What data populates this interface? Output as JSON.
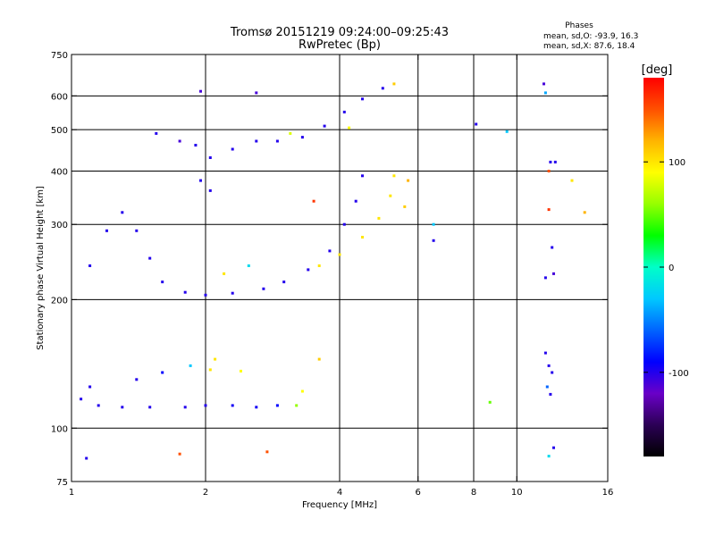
{
  "chart_data": {
    "type": "scatter",
    "title": "Tromsø 20151219 09:24:00–09:25:43",
    "subtitle": "RwPretec (Bp)",
    "xlabel": "Frequency [MHz]",
    "ylabel": "Stationary phase Virtual Height [km]",
    "x_scale": "log",
    "y_scale": "log",
    "xlim": [
      1,
      16
    ],
    "ylim": [
      75,
      750
    ],
    "x_ticks": [
      1,
      2,
      4,
      6,
      8,
      10,
      16
    ],
    "x_tick_labels": [
      "1",
      "2",
      "4",
      "6",
      "8",
      "10",
      "16"
    ],
    "y_ticks": [
      75,
      100,
      200,
      300,
      400,
      500,
      600,
      750
    ],
    "y_tick_labels": [
      "75",
      "100",
      "200",
      "300",
      "400",
      "500",
      "600",
      "750"
    ],
    "x_gridlines": [
      2,
      4,
      6,
      8,
      10
    ],
    "y_gridlines": [
      100,
      200,
      300,
      400,
      500,
      600
    ],
    "grid": true,
    "phases": {
      "heading": "Phases",
      "o_line": "mean, sd,O: -93.9, 16.3",
      "x_line": "mean, sd,X:  87.6, 18.4"
    },
    "colorbar": {
      "label": "[deg]",
      "min": -180,
      "max": 180,
      "ticks": [
        100,
        0,
        -100
      ],
      "tick_labels": [
        "100",
        "0",
        "-100"
      ],
      "stops": [
        "#000000",
        "#2b0055",
        "#6a00c8",
        "#0000ff",
        "#0064ff",
        "#00c8ff",
        "#00ffc8",
        "#00ff00",
        "#96ff00",
        "#ffff00",
        "#ffb400",
        "#ff5000",
        "#ff0000"
      ]
    },
    "series": [
      {
        "values": [
          {
            "x": 1.05,
            "y": 117,
            "phase": -100
          },
          {
            "x": 1.15,
            "y": 113,
            "phase": -100
          },
          {
            "x": 1.3,
            "y": 112,
            "phase": -100
          },
          {
            "x": 1.5,
            "y": 112,
            "phase": -100
          },
          {
            "x": 1.8,
            "y": 112,
            "phase": -100
          },
          {
            "x": 2.0,
            "y": 113,
            "phase": -100
          },
          {
            "x": 2.3,
            "y": 113,
            "phase": -95
          },
          {
            "x": 2.6,
            "y": 112,
            "phase": -95
          },
          {
            "x": 2.9,
            "y": 113,
            "phase": -90
          },
          {
            "x": 3.2,
            "y": 113,
            "phase": 60
          },
          {
            "x": 1.1,
            "y": 125,
            "phase": -100
          },
          {
            "x": 1.4,
            "y": 130,
            "phase": -100
          },
          {
            "x": 1.6,
            "y": 135,
            "phase": -90
          },
          {
            "x": 1.85,
            "y": 140,
            "phase": -30
          },
          {
            "x": 2.05,
            "y": 137,
            "phase": 100
          },
          {
            "x": 2.4,
            "y": 136,
            "phase": 90
          },
          {
            "x": 2.1,
            "y": 145,
            "phase": 100
          },
          {
            "x": 3.3,
            "y": 122,
            "phase": 90
          },
          {
            "x": 3.6,
            "y": 145,
            "phase": 110
          },
          {
            "x": 1.08,
            "y": 85,
            "phase": -100
          },
          {
            "x": 1.75,
            "y": 87,
            "phase": 150
          },
          {
            "x": 2.75,
            "y": 88,
            "phase": 150
          },
          {
            "x": 1.1,
            "y": 240,
            "phase": -100
          },
          {
            "x": 1.2,
            "y": 290,
            "phase": -100
          },
          {
            "x": 1.3,
            "y": 320,
            "phase": -100
          },
          {
            "x": 1.4,
            "y": 290,
            "phase": -100
          },
          {
            "x": 1.5,
            "y": 250,
            "phase": -100
          },
          {
            "x": 1.6,
            "y": 220,
            "phase": -100
          },
          {
            "x": 1.8,
            "y": 208,
            "phase": -100
          },
          {
            "x": 2.0,
            "y": 205,
            "phase": -100
          },
          {
            "x": 2.3,
            "y": 207,
            "phase": -100
          },
          {
            "x": 2.7,
            "y": 212,
            "phase": -100
          },
          {
            "x": 3.0,
            "y": 220,
            "phase": -100
          },
          {
            "x": 3.4,
            "y": 235,
            "phase": -100
          },
          {
            "x": 3.8,
            "y": 260,
            "phase": -100
          },
          {
            "x": 4.1,
            "y": 300,
            "phase": -100
          },
          {
            "x": 4.35,
            "y": 340,
            "phase": -100
          },
          {
            "x": 4.5,
            "y": 390,
            "phase": -100
          },
          {
            "x": 3.6,
            "y": 240,
            "phase": 100
          },
          {
            "x": 4.0,
            "y": 255,
            "phase": 100
          },
          {
            "x": 4.5,
            "y": 280,
            "phase": 100
          },
          {
            "x": 4.9,
            "y": 310,
            "phase": 100
          },
          {
            "x": 5.2,
            "y": 350,
            "phase": 100
          },
          {
            "x": 5.3,
            "y": 390,
            "phase": 100
          },
          {
            "x": 5.6,
            "y": 330,
            "phase": 110
          },
          {
            "x": 5.7,
            "y": 380,
            "phase": 120
          },
          {
            "x": 2.5,
            "y": 240,
            "phase": -20
          },
          {
            "x": 2.2,
            "y": 230,
            "phase": 100
          },
          {
            "x": 1.55,
            "y": 490,
            "phase": -100
          },
          {
            "x": 1.75,
            "y": 470,
            "phase": -110
          },
          {
            "x": 1.9,
            "y": 460,
            "phase": -100
          },
          {
            "x": 2.05,
            "y": 430,
            "phase": -100
          },
          {
            "x": 2.3,
            "y": 450,
            "phase": -100
          },
          {
            "x": 2.6,
            "y": 470,
            "phase": -100
          },
          {
            "x": 2.9,
            "y": 470,
            "phase": -100
          },
          {
            "x": 3.3,
            "y": 480,
            "phase": -100
          },
          {
            "x": 3.7,
            "y": 510,
            "phase": -100
          },
          {
            "x": 4.1,
            "y": 550,
            "phase": -100
          },
          {
            "x": 4.5,
            "y": 590,
            "phase": -100
          },
          {
            "x": 5.0,
            "y": 625,
            "phase": -100
          },
          {
            "x": 1.95,
            "y": 380,
            "phase": -100
          },
          {
            "x": 2.05,
            "y": 360,
            "phase": -100
          },
          {
            "x": 1.95,
            "y": 615,
            "phase": -110
          },
          {
            "x": 2.6,
            "y": 610,
            "phase": -110
          },
          {
            "x": 3.1,
            "y": 490,
            "phase": 80
          },
          {
            "x": 3.5,
            "y": 340,
            "phase": 160
          },
          {
            "x": 4.2,
            "y": 505,
            "phase": 90
          },
          {
            "x": 5.3,
            "y": 640,
            "phase": 110
          },
          {
            "x": 6.5,
            "y": 300,
            "phase": -30
          },
          {
            "x": 6.5,
            "y": 275,
            "phase": -100
          },
          {
            "x": 8.1,
            "y": 515,
            "phase": -100
          },
          {
            "x": 9.5,
            "y": 495,
            "phase": -30
          },
          {
            "x": 8.7,
            "y": 115,
            "phase": 50
          },
          {
            "x": 11.5,
            "y": 640,
            "phase": -110
          },
          {
            "x": 11.6,
            "y": 610,
            "phase": -40
          },
          {
            "x": 11.8,
            "y": 400,
            "phase": 150
          },
          {
            "x": 11.9,
            "y": 420,
            "phase": -100
          },
          {
            "x": 11.8,
            "y": 325,
            "phase": 160
          },
          {
            "x": 12.2,
            "y": 420,
            "phase": -100
          },
          {
            "x": 12.0,
            "y": 265,
            "phase": -100
          },
          {
            "x": 12.1,
            "y": 230,
            "phase": -110
          },
          {
            "x": 11.6,
            "y": 225,
            "phase": -100
          },
          {
            "x": 11.6,
            "y": 150,
            "phase": -100
          },
          {
            "x": 11.8,
            "y": 140,
            "phase": -100
          },
          {
            "x": 12.0,
            "y": 135,
            "phase": -100
          },
          {
            "x": 11.7,
            "y": 125,
            "phase": -60
          },
          {
            "x": 11.9,
            "y": 120,
            "phase": -100
          },
          {
            "x": 12.1,
            "y": 90,
            "phase": -100
          },
          {
            "x": 11.8,
            "y": 86,
            "phase": -20
          },
          {
            "x": 13.3,
            "y": 380,
            "phase": 100
          },
          {
            "x": 14.2,
            "y": 320,
            "phase": 120
          }
        ]
      }
    ]
  }
}
